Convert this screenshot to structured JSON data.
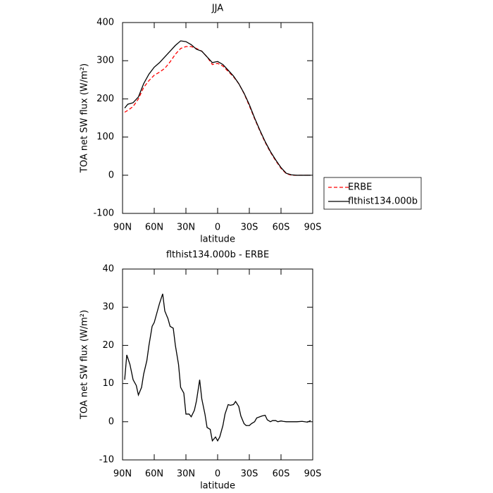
{
  "chart_data": [
    {
      "type": "line",
      "title": "JJA",
      "x_label": "latitude",
      "y_label": "TOA net SW flux (W/m²)",
      "x": [
        88,
        85,
        80,
        75,
        70,
        65,
        60,
        55,
        50,
        45,
        40,
        35,
        30,
        25,
        20,
        15,
        10,
        5,
        0,
        -5,
        -10,
        -15,
        -20,
        -25,
        -30,
        -35,
        -40,
        -45,
        -50,
        -55,
        -60,
        -65,
        -70,
        -75,
        -80,
        -85,
        -88
      ],
      "series": [
        {
          "name": "ERBE",
          "color": "#ff0000",
          "dashed": true,
          "values": [
            165,
            170,
            180,
            200,
            230,
            248,
            262,
            270,
            280,
            297,
            317,
            332,
            337,
            337,
            332,
            325,
            310,
            290,
            293,
            286,
            272,
            258,
            240,
            214,
            182,
            148,
            116,
            86,
            60,
            38,
            18,
            4,
            0,
            0,
            0,
            0,
            0
          ]
        },
        {
          "name": "flthist134.000b",
          "color": "#000000",
          "dashed": false,
          "values": [
            176,
            186,
            190,
            205,
            240,
            265,
            283,
            295,
            310,
            325,
            340,
            352,
            350,
            342,
            330,
            325,
            310,
            295,
            298,
            290,
            275,
            260,
            240,
            215,
            185,
            150,
            118,
            88,
            62,
            40,
            20,
            5,
            1,
            0,
            0,
            0,
            0
          ]
        }
      ],
      "xlim": [
        90,
        -90
      ],
      "xticks": [
        {
          "value": 90,
          "label": "90N"
        },
        {
          "value": 60,
          "label": "60N"
        },
        {
          "value": 30,
          "label": "30N"
        },
        0,
        {
          "value": -30,
          "label": "30S"
        },
        {
          "value": -60,
          "label": "60S"
        },
        {
          "value": -90,
          "label": "90S"
        }
      ],
      "ylim": [
        -100,
        400
      ],
      "yticks": [
        -100,
        0,
        100,
        200,
        300,
        400
      ],
      "legend": "right"
    },
    {
      "type": "line",
      "title": "flthist134.000b - ERBE",
      "x_label": "latitude",
      "y_label": "TOA net SW flux (W/m²)",
      "x": [
        88,
        86,
        83,
        80,
        77,
        75,
        72,
        70,
        67,
        65,
        62,
        60,
        57,
        55,
        52,
        50,
        47,
        45,
        42,
        40,
        37,
        35,
        32,
        30,
        27,
        25,
        22,
        20,
        17,
        15,
        12,
        10,
        7,
        5,
        2,
        0,
        -2,
        -5,
        -7,
        -10,
        -12,
        -15,
        -17,
        -20,
        -22,
        -25,
        -27,
        -30,
        -32,
        -35,
        -37,
        -40,
        -42,
        -45,
        -47,
        -50,
        -52,
        -55,
        -57,
        -60,
        -62,
        -65,
        -67,
        -70,
        -72,
        -75,
        -80,
        -85,
        -88
      ],
      "series": [
        {
          "name": "flthist134.000b - ERBE",
          "color": "#000000",
          "dashed": false,
          "values": [
            11,
            17.5,
            15,
            11,
            9.5,
            7,
            9,
            12.5,
            16,
            20,
            25,
            26,
            29,
            31,
            33.5,
            29,
            27,
            25,
            24.5,
            20,
            15,
            9,
            7.5,
            2,
            2,
            1.3,
            3,
            5.5,
            11,
            6,
            2,
            -1.5,
            -2,
            -5,
            -4,
            -5,
            -4,
            -1,
            2,
            4.5,
            4.3,
            4.5,
            5.3,
            4,
            1.5,
            -0.5,
            -1,
            -1,
            -0.5,
            0,
            1,
            1.3,
            1.5,
            1.7,
            0.5,
            0,
            0.3,
            0.3,
            0,
            0.2,
            0.1,
            0,
            0,
            0,
            0,
            0,
            0.1,
            -0.1,
            0.3
          ]
        }
      ],
      "xlim": [
        90,
        -90
      ],
      "xticks": [
        {
          "value": 90,
          "label": "90N"
        },
        {
          "value": 60,
          "label": "60N"
        },
        {
          "value": 30,
          "label": "30N"
        },
        0,
        {
          "value": -30,
          "label": "30S"
        },
        {
          "value": -60,
          "label": "60S"
        },
        {
          "value": -90,
          "label": "90S"
        }
      ],
      "ylim": [
        -10,
        40
      ],
      "yticks": [
        -10,
        0,
        10,
        20,
        30,
        40
      ],
      "legend": "none"
    }
  ]
}
